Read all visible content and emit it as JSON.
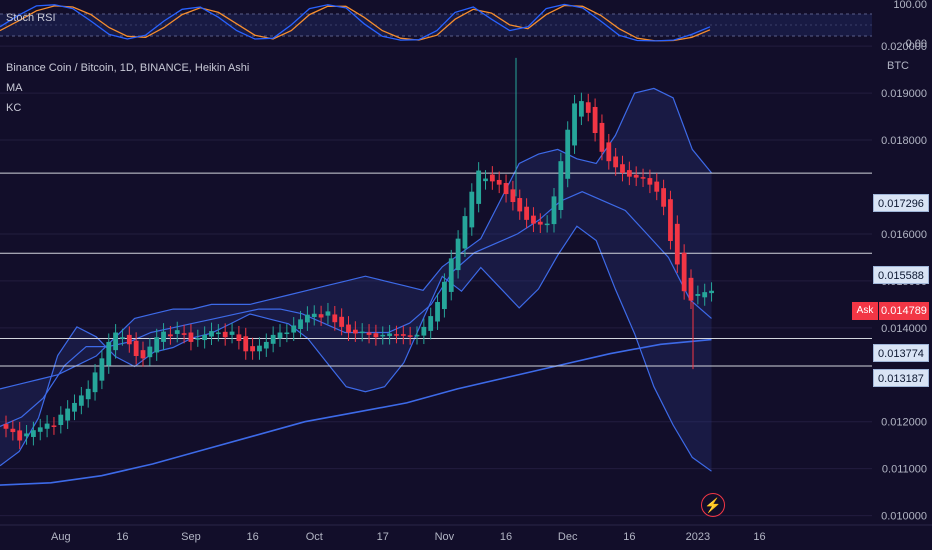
{
  "header": {
    "stoch_label": "Stoch RSI",
    "symbol_line": "Binance Coin / Bitcoin, 1D, BINANCE, Heikin Ashi",
    "ma_label": "MA",
    "kc_label": "KC"
  },
  "axis": {
    "currency": "BTC",
    "stoch_ticks": [
      "100.00",
      "0.00"
    ]
  },
  "levels": [
    {
      "value": 0.017296,
      "label": "0.017296"
    },
    {
      "value": 0.015588,
      "label": "0.015588"
    },
    {
      "value": 0.013774,
      "label": "0.013774"
    },
    {
      "value": 0.013187,
      "label": "0.013187"
    }
  ],
  "ask": {
    "label": "Ask",
    "value": "0.014789"
  },
  "colors": {
    "background": "#120e2a",
    "up": "#26a69a",
    "down": "#f23645",
    "band": "#3d5fd9",
    "level": "#d1d4dc"
  },
  "chart_data": {
    "type": "candlestick",
    "ylim": [
      0.0098,
      0.0206
    ],
    "ytick_labels": [
      "0.020000",
      "0.019000",
      "0.018000",
      "0.016000",
      "0.015000",
      "0.014000",
      "0.012000",
      "0.011000",
      "0.010000"
    ],
    "ytick_values": [
      0.02,
      0.019,
      0.018,
      0.016,
      0.015,
      0.014,
      0.012,
      0.011,
      0.01
    ],
    "xtick_labels": [
      "Aug",
      "16",
      "Sep",
      "16",
      "Oct",
      "17",
      "Nov",
      "16",
      "Dec",
      "16",
      "2023",
      "16"
    ],
    "xtick_index": [
      8,
      17,
      27,
      36,
      45,
      55,
      64,
      73,
      82,
      91,
      101,
      110
    ],
    "heikin_ashi_close": [
      0.01185,
      0.01178,
      0.0116,
      0.01175,
      0.01182,
      0.01188,
      0.01196,
      0.0119,
      0.01215,
      0.01228,
      0.0124,
      0.01256,
      0.0127,
      0.01305,
      0.01335,
      0.0137,
      0.0139,
      0.0138,
      0.01365,
      0.0134,
      0.01335,
      0.0136,
      0.0138,
      0.01392,
      0.01382,
      0.01395,
      0.01385,
      0.0137,
      0.01378,
      0.01385,
      0.01393,
      0.0139,
      0.0138,
      0.01392,
      0.01372,
      0.0135,
      0.0135,
      0.01362,
      0.0137,
      0.01385,
      0.0139,
      0.0139,
      0.01405,
      0.01418,
      0.01428,
      0.0143,
      0.01422,
      0.01435,
      0.01412,
      0.01402,
      0.0139,
      0.01388,
      0.01392,
      0.01385,
      0.0138,
      0.01385,
      0.01388,
      0.01385,
      0.01383,
      0.01382,
      0.01385,
      0.01402,
      0.01425,
      0.01455,
      0.01498,
      0.01548,
      0.0159,
      0.01638,
      0.0169,
      0.01735,
      0.01718,
      0.01712,
      0.01705,
      0.01685,
      0.01668,
      0.01648,
      0.0163,
      0.01622,
      0.0162,
      0.01622,
      0.0168,
      0.01755,
      0.01822,
      0.01878,
      0.01883,
      0.01858,
      0.01815,
      0.01775,
      0.01755,
      0.01742,
      0.0173,
      0.01722,
      0.0172,
      0.01718,
      0.01705,
      0.0169,
      0.01658,
      0.01585,
      0.01535,
      0.01478,
      0.01458,
      0.01472,
      0.01476,
      0.01479
    ],
    "keltner_upper": [
      0.0127,
      0.0128,
      0.0129,
      0.013,
      0.0132,
      0.0134,
      0.0138,
      0.0142,
      0.0143,
      0.0144,
      0.0144,
      0.0145,
      0.0145,
      0.0145,
      0.0146,
      0.0147,
      0.0148,
      0.0149,
      0.015,
      0.0151,
      0.015,
      0.0149,
      0.0148,
      0.0153,
      0.0156,
      0.0159,
      0.0167,
      0.0175,
      0.0177,
      0.0178,
      0.0176,
      0.0175,
      0.0181,
      0.019,
      0.0191,
      0.0189,
      0.0178,
      0.0173
    ],
    "keltner_middle": [
      0.0119,
      0.0121,
      0.0125,
      0.0132,
      0.0136,
      0.0136,
      0.0137,
      0.0139,
      0.014,
      0.0141,
      0.0142,
      0.0143,
      0.0144,
      0.0144,
      0.0143,
      0.0141,
      0.0139,
      0.0139,
      0.0139,
      0.0141,
      0.0145,
      0.0152,
      0.0156,
      0.0158,
      0.016,
      0.0163,
      0.0167,
      0.0169,
      0.0167,
      0.0165,
      0.016,
      0.0155,
      0.0146,
      0.0142
    ],
    "ma_long": [
      0.01065,
      0.0107,
      0.01085,
      0.0111,
      0.0114,
      0.0117,
      0.012,
      0.0122,
      0.0124,
      0.0127,
      0.01295,
      0.0132,
      0.01345,
      0.01365,
      0.01375
    ],
    "stoch_k": [
      40,
      70,
      95,
      98,
      88,
      55,
      20,
      8,
      18,
      55,
      86,
      92,
      65,
      30,
      8,
      10,
      45,
      88,
      98,
      90,
      48,
      15,
      5,
      6,
      30,
      78,
      92,
      60,
      30,
      40,
      88,
      99,
      90,
      55,
      18,
      4,
      3,
      5,
      20,
      40
    ],
    "stoch_d": [
      30,
      55,
      82,
      95,
      92,
      72,
      38,
      15,
      12,
      38,
      72,
      90,
      78,
      48,
      18,
      8,
      30,
      72,
      94,
      94,
      65,
      30,
      10,
      5,
      18,
      60,
      86,
      76,
      45,
      35,
      72,
      96,
      94,
      70,
      35,
      10,
      3,
      4,
      12,
      32
    ]
  }
}
